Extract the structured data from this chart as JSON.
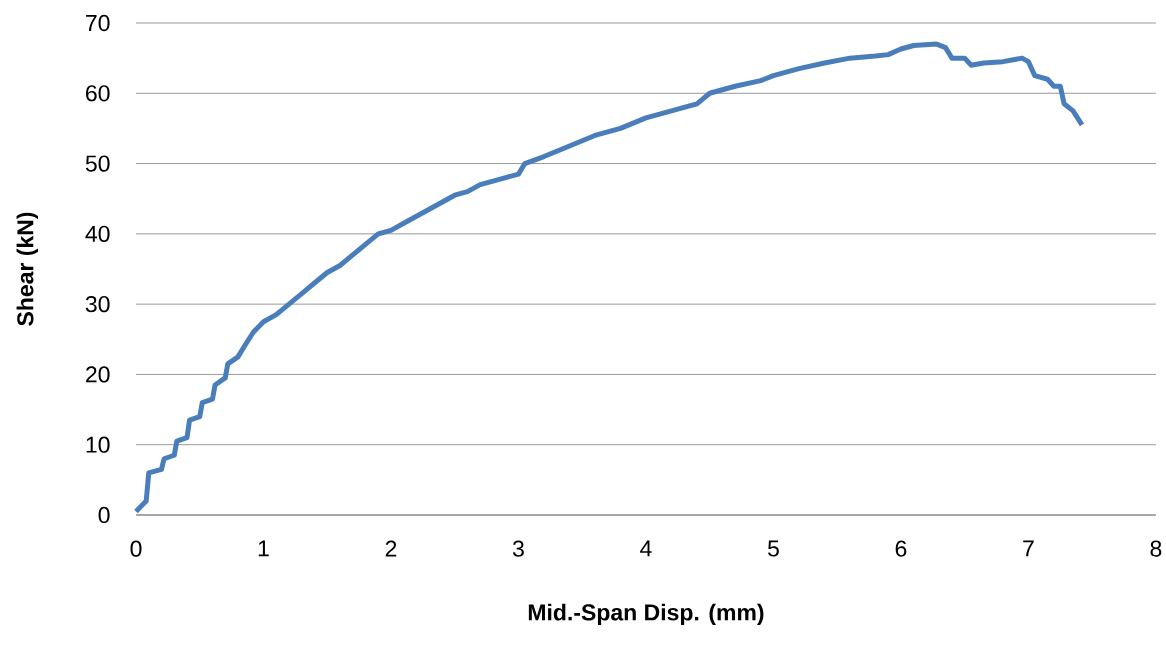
{
  "chart_data": {
    "type": "line",
    "xlabel": "Mid.-Span Disp. (mm)",
    "ylabel": "Shear (kN)",
    "xlim": [
      0,
      8
    ],
    "ylim": [
      0,
      70
    ],
    "xticks": [
      0,
      1,
      2,
      3,
      4,
      5,
      6,
      7,
      8
    ],
    "yticks": [
      0,
      10,
      20,
      30,
      40,
      50,
      60,
      70
    ],
    "grid": "y",
    "marker": "none",
    "line_style": "solid",
    "series": [
      {
        "color": "#4a7ebb",
        "x": [
          0,
          0.08,
          0.1,
          0.2,
          0.22,
          0.3,
          0.32,
          0.4,
          0.42,
          0.5,
          0.52,
          0.6,
          0.62,
          0.7,
          0.72,
          0.8,
          0.85,
          0.92,
          1.0,
          1.1,
          1.2,
          1.3,
          1.4,
          1.5,
          1.6,
          1.7,
          1.8,
          1.9,
          2.0,
          2.1,
          2.2,
          2.3,
          2.4,
          2.5,
          2.6,
          2.7,
          2.8,
          2.9,
          3.0,
          3.05,
          3.2,
          3.4,
          3.6,
          3.8,
          4.0,
          4.2,
          4.4,
          4.5,
          4.7,
          4.9,
          5.0,
          5.2,
          5.4,
          5.6,
          5.8,
          5.9,
          6.0,
          6.1,
          6.28,
          6.35,
          6.4,
          6.5,
          6.55,
          6.65,
          6.8,
          6.95,
          7.0,
          7.05,
          7.15,
          7.2,
          7.25,
          7.28,
          7.35,
          7.42
        ],
        "values": [
          0.5,
          2,
          6,
          6.5,
          8,
          8.5,
          10.5,
          11,
          13.5,
          14,
          16,
          16.5,
          18.5,
          19.5,
          21.5,
          22.5,
          24,
          26,
          27.5,
          28.5,
          30,
          31.5,
          33,
          34.5,
          35.5,
          37,
          38.5,
          40,
          40.5,
          41.5,
          42.5,
          43.5,
          44.5,
          45.5,
          46,
          47,
          47.5,
          48,
          48.5,
          50,
          51,
          52.5,
          54,
          55,
          56.5,
          57.5,
          58.5,
          60,
          61,
          61.8,
          62.5,
          63.5,
          64.3,
          65,
          65.3,
          65.5,
          66.3,
          66.8,
          67,
          66.5,
          65,
          65,
          64,
          64.3,
          64.5,
          65,
          64.5,
          62.5,
          62,
          61,
          61,
          58.5,
          57.5,
          55.5
        ]
      }
    ]
  }
}
